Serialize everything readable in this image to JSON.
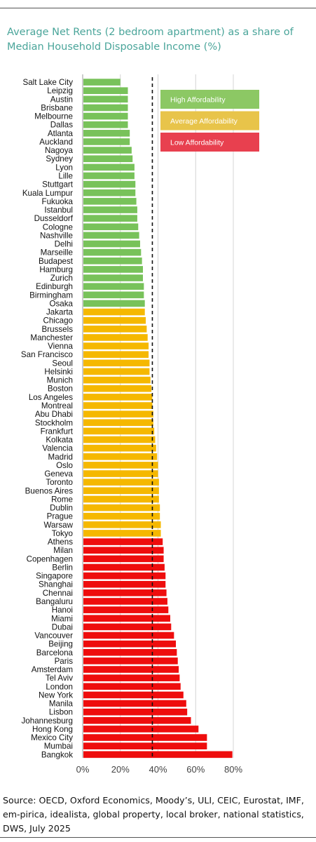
{
  "title": "Average Net Rents (2 bedroom apartment) as a share of Median Household Disposable Income (%)",
  "source": "Source: OECD, Oxford Economics, Moody’s, ULI, CEIC, Eurostat, IMF, em-pirica, idealista, global property, local broker, national statistics, DWS, July 2025",
  "chart_data": {
    "type": "bar",
    "orientation": "horizontal",
    "x_ticks": [
      "0%",
      "20%",
      "40%",
      "60%",
      "80%"
    ],
    "xlim": [
      0,
      80
    ],
    "grid": true,
    "reference_line": 37,
    "legend_position": "top-right",
    "legend": [
      {
        "label": "High Affordability",
        "color": "#8cc864"
      },
      {
        "label": "Average Affordability",
        "color": "#e8c44a"
      },
      {
        "label": "Low Affordability",
        "color": "#e8404f"
      }
    ],
    "group_colors": {
      "high": "#78c25a",
      "average": "#f5b800",
      "low": "#ee0d0d"
    },
    "categories": [
      "Salt Lake City",
      "Leipzig",
      "Austin",
      "Brisbane",
      "Melbourne",
      "Dallas",
      "Atlanta",
      "Auckland",
      "Nagoya",
      "Sydney",
      "Lyon",
      "Lille",
      "Stuttgart",
      "Kuala Lumpur",
      "Fukuoka",
      "Istanbul",
      "Dusseldorf",
      "Cologne",
      "Nashville",
      "Delhi",
      "Marseille",
      "Budapest",
      "Hamburg",
      "Zurich",
      "Edinburgh",
      "Birmingham",
      "Osaka",
      "Jakarta",
      "Chicago",
      "Brussels",
      "Manchester",
      "Vienna",
      "San Francisco",
      "Seoul",
      "Helsinki",
      "Munich",
      "Boston",
      "Los Angeles",
      "Montreal",
      "Abu Dhabi",
      "Stockholm",
      "Frankfurt",
      "Kolkata",
      "Valencia",
      "Madrid",
      "Oslo",
      "Geneva",
      "Toronto",
      "Buenos Aires",
      "Rome",
      "Dublin",
      "Prague",
      "Warsaw",
      "Tokyo",
      "Athens",
      "Milan",
      "Copenhagen",
      "Berlin",
      "Singapore",
      "Shanghai",
      "Chennai",
      "Bangaluru",
      "Hanoi",
      "Miami",
      "Dubai",
      "Vancouver",
      "Beijing",
      "Barcelona",
      "Paris",
      "Amsterdam",
      "Tel Aviv",
      "London",
      "New York",
      "Manila",
      "Lisbon",
      "Johannesburg",
      "Hong Kong",
      "Mexico City",
      "Mumbai",
      "Bangkok"
    ],
    "values": [
      20,
      24,
      24,
      24,
      24,
      24,
      25,
      25,
      26,
      26.5,
      27.5,
      27.5,
      28,
      28,
      28.5,
      29,
      29,
      29.5,
      30,
      30.5,
      31,
      31.5,
      32,
      32,
      32.5,
      32.5,
      33,
      33,
      33.5,
      34,
      34.5,
      35,
      35,
      35.5,
      35.5,
      36,
      36.5,
      37,
      37,
      37.5,
      37.5,
      38,
      38.5,
      39,
      39.5,
      40,
      40,
      40.5,
      40.5,
      40.5,
      41,
      41,
      41.5,
      41.5,
      42.5,
      43,
      43,
      43.5,
      44,
      44,
      44.5,
      45,
      45.5,
      46.5,
      47,
      48.5,
      49.5,
      50,
      50.5,
      51,
      51.5,
      52,
      53.5,
      55,
      55.5,
      57.5,
      61.5,
      66,
      66,
      79.5
    ],
    "groups": [
      "high",
      "high",
      "high",
      "high",
      "high",
      "high",
      "high",
      "high",
      "high",
      "high",
      "high",
      "high",
      "high",
      "high",
      "high",
      "high",
      "high",
      "high",
      "high",
      "high",
      "high",
      "high",
      "high",
      "high",
      "high",
      "high",
      "high",
      "average",
      "average",
      "average",
      "average",
      "average",
      "average",
      "average",
      "average",
      "average",
      "average",
      "average",
      "average",
      "average",
      "average",
      "average",
      "average",
      "average",
      "average",
      "average",
      "average",
      "average",
      "average",
      "average",
      "average",
      "average",
      "average",
      "average",
      "low",
      "low",
      "low",
      "low",
      "low",
      "low",
      "low",
      "low",
      "low",
      "low",
      "low",
      "low",
      "low",
      "low",
      "low",
      "low",
      "low",
      "low",
      "low",
      "low",
      "low",
      "low",
      "low",
      "low",
      "low",
      "low"
    ]
  }
}
